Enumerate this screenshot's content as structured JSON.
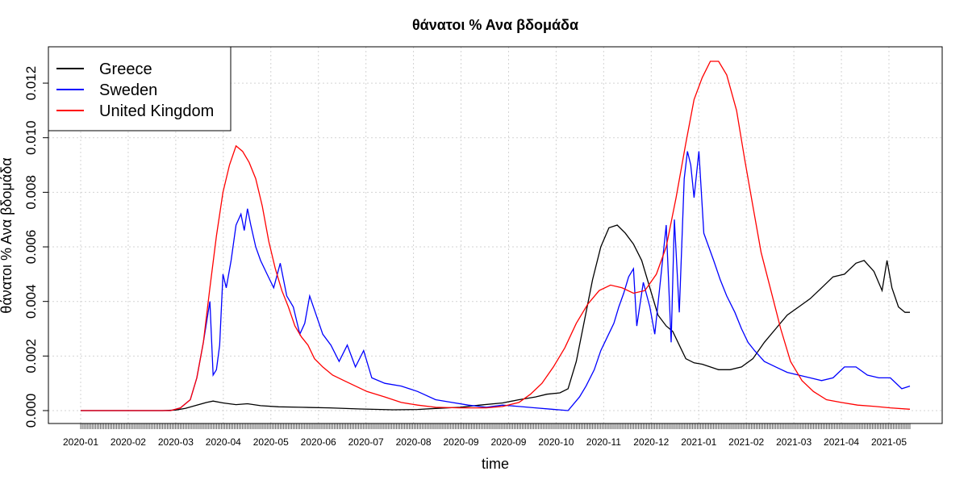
{
  "chart_data": {
    "type": "line",
    "title": "θάνατοι %  Ανα βδομάδα",
    "xlabel": "time",
    "ylabel": "θάνατοι %  Ανα βδομάδα",
    "x_tick_labels": [
      "2020-01",
      "2020-02",
      "2020-03",
      "2020-04",
      "2020-05",
      "2020-06",
      "2020-07",
      "2020-08",
      "2020-09",
      "2020-09",
      "2020-10",
      "2020-11",
      "2020-12",
      "2021-01",
      "2021-02",
      "2021-03",
      "2021-04",
      "2021-05"
    ],
    "y_ticks": [
      "0.000",
      "0.002",
      "0.004",
      "0.006",
      "0.008",
      "0.010",
      "0.012"
    ],
    "ylim": [
      0,
      0.0128
    ],
    "xlim": [
      "2020-01-01",
      "2021-05-22"
    ],
    "grid": true,
    "legend_position": "top-left",
    "series": [
      {
        "name": "Greece",
        "color": "#000000",
        "points": [
          [
            "2020-01-01",
            0.0
          ],
          [
            "2020-02-20",
            0.0
          ],
          [
            "2020-02-28",
            2e-05
          ],
          [
            "2020-03-05",
            8e-05
          ],
          [
            "2020-03-12",
            0.0002
          ],
          [
            "2020-03-18",
            0.0003
          ],
          [
            "2020-03-22",
            0.00035
          ],
          [
            "2020-03-28",
            0.00028
          ],
          [
            "2020-04-05",
            0.00022
          ],
          [
            "2020-04-12",
            0.00025
          ],
          [
            "2020-04-20",
            0.00018
          ],
          [
            "2020-05-01",
            0.00014
          ],
          [
            "2020-05-15",
            0.00012
          ],
          [
            "2020-06-01",
            0.0001
          ],
          [
            "2020-06-20",
            6e-05
          ],
          [
            "2020-07-10",
            3e-05
          ],
          [
            "2020-07-25",
            4e-05
          ],
          [
            "2020-08-05",
            8e-05
          ],
          [
            "2020-08-20",
            0.00012
          ],
          [
            "2020-09-01",
            0.0002
          ],
          [
            "2020-09-15",
            0.00028
          ],
          [
            "2020-09-25",
            0.0004
          ],
          [
            "2020-10-05",
            0.0005
          ],
          [
            "2020-10-12",
            0.0006
          ],
          [
            "2020-10-20",
            0.00065
          ],
          [
            "2020-10-25",
            0.0008
          ],
          [
            "2020-10-30",
            0.0018
          ],
          [
            "2020-11-04",
            0.0033
          ],
          [
            "2020-11-09",
            0.0048
          ],
          [
            "2020-11-14",
            0.006
          ],
          [
            "2020-11-19",
            0.0067
          ],
          [
            "2020-11-24",
            0.0068
          ],
          [
            "2020-11-29",
            0.0065
          ],
          [
            "2020-12-04",
            0.0061
          ],
          [
            "2020-12-09",
            0.0055
          ],
          [
            "2020-12-14",
            0.0045
          ],
          [
            "2020-12-19",
            0.0035
          ],
          [
            "2020-12-24",
            0.0031
          ],
          [
            "2020-12-28",
            0.0029
          ],
          [
            "2021-01-01",
            0.0024
          ],
          [
            "2021-01-05",
            0.0019
          ],
          [
            "2021-01-10",
            0.00175
          ],
          [
            "2021-01-15",
            0.0017
          ],
          [
            "2021-01-20",
            0.0016
          ],
          [
            "2021-01-25",
            0.0015
          ],
          [
            "2021-02-01",
            0.0015
          ],
          [
            "2021-02-08",
            0.0016
          ],
          [
            "2021-02-15",
            0.0019
          ],
          [
            "2021-02-22",
            0.0025
          ],
          [
            "2021-03-01",
            0.003
          ],
          [
            "2021-03-08",
            0.0035
          ],
          [
            "2021-03-15",
            0.0038
          ],
          [
            "2021-03-22",
            0.0041
          ],
          [
            "2021-03-29",
            0.0045
          ],
          [
            "2021-04-05",
            0.0049
          ],
          [
            "2021-04-12",
            0.005
          ],
          [
            "2021-04-19",
            0.0054
          ],
          [
            "2021-04-24",
            0.0055
          ],
          [
            "2021-04-30",
            0.0051
          ],
          [
            "2021-05-05",
            0.0044
          ],
          [
            "2021-05-08",
            0.0055
          ],
          [
            "2021-05-11",
            0.0045
          ],
          [
            "2021-05-15",
            0.0038
          ],
          [
            "2021-05-19",
            0.0036
          ],
          [
            "2021-05-22",
            0.0036
          ]
        ]
      },
      {
        "name": "Sweden",
        "color": "#0000ff",
        "points": [
          [
            "2020-01-01",
            0.0
          ],
          [
            "2020-02-25",
            0.0
          ],
          [
            "2020-03-02",
            0.0001
          ],
          [
            "2020-03-08",
            0.0004
          ],
          [
            "2020-03-12",
            0.0012
          ],
          [
            "2020-03-16",
            0.0025
          ],
          [
            "2020-03-20",
            0.004
          ],
          [
            "2020-03-22",
            0.0013
          ],
          [
            "2020-03-24",
            0.0015
          ],
          [
            "2020-03-26",
            0.0024
          ],
          [
            "2020-03-28",
            0.005
          ],
          [
            "2020-03-30",
            0.0045
          ],
          [
            "2020-04-02",
            0.0055
          ],
          [
            "2020-04-05",
            0.0068
          ],
          [
            "2020-04-08",
            0.0072
          ],
          [
            "2020-04-10",
            0.0066
          ],
          [
            "2020-04-12",
            0.0074
          ],
          [
            "2020-04-14",
            0.0068
          ],
          [
            "2020-04-17",
            0.006
          ],
          [
            "2020-04-20",
            0.0055
          ],
          [
            "2020-04-24",
            0.005
          ],
          [
            "2020-04-28",
            0.0045
          ],
          [
            "2020-05-02",
            0.0054
          ],
          [
            "2020-05-06",
            0.0042
          ],
          [
            "2020-05-10",
            0.0038
          ],
          [
            "2020-05-14",
            0.0028
          ],
          [
            "2020-05-17",
            0.0032
          ],
          [
            "2020-05-20",
            0.0042
          ],
          [
            "2020-05-24",
            0.0035
          ],
          [
            "2020-05-28",
            0.0028
          ],
          [
            "2020-06-02",
            0.0024
          ],
          [
            "2020-06-07",
            0.0018
          ],
          [
            "2020-06-12",
            0.0024
          ],
          [
            "2020-06-17",
            0.0016
          ],
          [
            "2020-06-22",
            0.0022
          ],
          [
            "2020-06-27",
            0.0012
          ],
          [
            "2020-07-05",
            0.001
          ],
          [
            "2020-07-15",
            0.0009
          ],
          [
            "2020-07-25",
            0.0007
          ],
          [
            "2020-08-05",
            0.0004
          ],
          [
            "2020-08-15",
            0.0003
          ],
          [
            "2020-08-25",
            0.0002
          ],
          [
            "2020-09-05",
            0.00012
          ],
          [
            "2020-09-15",
            0.0002
          ],
          [
            "2020-09-25",
            0.00015
          ],
          [
            "2020-10-05",
            0.0001
          ],
          [
            "2020-10-15",
            5e-05
          ],
          [
            "2020-10-25",
            0.0
          ],
          [
            "2020-11-01",
            0.0005
          ],
          [
            "2020-11-05",
            0.0009
          ],
          [
            "2020-11-10",
            0.0015
          ],
          [
            "2020-11-14",
            0.0022
          ],
          [
            "2020-11-18",
            0.0027
          ],
          [
            "2020-11-22",
            0.0032
          ],
          [
            "2020-11-25",
            0.0038
          ],
          [
            "2020-11-28",
            0.0043
          ],
          [
            "2020-12-01",
            0.0049
          ],
          [
            "2020-12-04",
            0.0052
          ],
          [
            "2020-12-06",
            0.0031
          ],
          [
            "2020-12-10",
            0.0047
          ],
          [
            "2020-12-14",
            0.0038
          ],
          [
            "2020-12-17",
            0.0028
          ],
          [
            "2020-12-20",
            0.0045
          ],
          [
            "2020-12-24",
            0.0068
          ],
          [
            "2020-12-27",
            0.0025
          ],
          [
            "2020-12-29",
            0.007
          ],
          [
            "2021-01-01",
            0.0036
          ],
          [
            "2021-01-04",
            0.0085
          ],
          [
            "2021-01-06",
            0.0095
          ],
          [
            "2021-01-08",
            0.009
          ],
          [
            "2021-01-10",
            0.0078
          ],
          [
            "2021-01-13",
            0.0095
          ],
          [
            "2021-01-16",
            0.0065
          ],
          [
            "2021-01-19",
            0.006
          ],
          [
            "2021-01-22",
            0.0055
          ],
          [
            "2021-01-26",
            0.0048
          ],
          [
            "2021-01-30",
            0.0042
          ],
          [
            "2021-02-04",
            0.0036
          ],
          [
            "2021-02-08",
            0.003
          ],
          [
            "2021-02-12",
            0.0025
          ],
          [
            "2021-02-16",
            0.0022
          ],
          [
            "2021-02-22",
            0.0018
          ],
          [
            "2021-03-01",
            0.0016
          ],
          [
            "2021-03-08",
            0.0014
          ],
          [
            "2021-03-15",
            0.0013
          ],
          [
            "2021-03-22",
            0.0012
          ],
          [
            "2021-03-29",
            0.0011
          ],
          [
            "2021-04-05",
            0.0012
          ],
          [
            "2021-04-12",
            0.0016
          ],
          [
            "2021-04-19",
            0.0016
          ],
          [
            "2021-04-26",
            0.0013
          ],
          [
            "2021-05-03",
            0.0012
          ],
          [
            "2021-05-10",
            0.0012
          ],
          [
            "2021-05-17",
            0.0008
          ],
          [
            "2021-05-22",
            0.0009
          ]
        ]
      },
      {
        "name": "United Kingdom",
        "color": "#ff0000",
        "points": [
          [
            "2020-01-01",
            0.0
          ],
          [
            "2020-02-25",
            0.0
          ],
          [
            "2020-03-02",
            0.0001
          ],
          [
            "2020-03-08",
            0.0004
          ],
          [
            "2020-03-12",
            0.0012
          ],
          [
            "2020-03-16",
            0.0025
          ],
          [
            "2020-03-20",
            0.0045
          ],
          [
            "2020-03-24",
            0.0064
          ],
          [
            "2020-03-28",
            0.008
          ],
          [
            "2020-04-01",
            0.009
          ],
          [
            "2020-04-05",
            0.0097
          ],
          [
            "2020-04-09",
            0.0095
          ],
          [
            "2020-04-13",
            0.0091
          ],
          [
            "2020-04-17",
            0.0085
          ],
          [
            "2020-04-21",
            0.0075
          ],
          [
            "2020-04-25",
            0.0062
          ],
          [
            "2020-04-29",
            0.0052
          ],
          [
            "2020-05-03",
            0.0044
          ],
          [
            "2020-05-07",
            0.0038
          ],
          [
            "2020-05-11",
            0.0031
          ],
          [
            "2020-05-15",
            0.0027
          ],
          [
            "2020-05-19",
            0.0024
          ],
          [
            "2020-05-23",
            0.0019
          ],
          [
            "2020-05-28",
            0.0016
          ],
          [
            "2020-06-03",
            0.0013
          ],
          [
            "2020-06-10",
            0.0011
          ],
          [
            "2020-06-17",
            0.0009
          ],
          [
            "2020-06-24",
            0.0007
          ],
          [
            "2020-07-05",
            0.0005
          ],
          [
            "2020-07-15",
            0.0003
          ],
          [
            "2020-07-25",
            0.0002
          ],
          [
            "2020-08-05",
            0.00012
          ],
          [
            "2020-08-20",
            0.0001
          ],
          [
            "2020-09-05",
            0.0001
          ],
          [
            "2020-09-15",
            0.00015
          ],
          [
            "2020-09-25",
            0.0003
          ],
          [
            "2020-10-02",
            0.0006
          ],
          [
            "2020-10-09",
            0.001
          ],
          [
            "2020-10-16",
            0.0016
          ],
          [
            "2020-10-23",
            0.0023
          ],
          [
            "2020-10-30",
            0.0032
          ],
          [
            "2020-11-06",
            0.0039
          ],
          [
            "2020-11-13",
            0.0044
          ],
          [
            "2020-11-20",
            0.0046
          ],
          [
            "2020-11-27",
            0.0045
          ],
          [
            "2020-12-04",
            0.0043
          ],
          [
            "2020-12-11",
            0.0044
          ],
          [
            "2020-12-18",
            0.005
          ],
          [
            "2020-12-24",
            0.006
          ],
          [
            "2020-12-30",
            0.0078
          ],
          [
            "2021-01-05",
            0.0098
          ],
          [
            "2021-01-10",
            0.0114
          ],
          [
            "2021-01-15",
            0.0122
          ],
          [
            "2021-01-20",
            0.0128
          ],
          [
            "2021-01-25",
            0.0128
          ],
          [
            "2021-01-30",
            0.0123
          ],
          [
            "2021-02-05",
            0.011
          ],
          [
            "2021-02-10",
            0.0092
          ],
          [
            "2021-02-15",
            0.0075
          ],
          [
            "2021-02-20",
            0.0058
          ],
          [
            "2021-02-26",
            0.0044
          ],
          [
            "2021-03-04",
            0.003
          ],
          [
            "2021-03-10",
            0.0018
          ],
          [
            "2021-03-17",
            0.0011
          ],
          [
            "2021-03-24",
            0.0007
          ],
          [
            "2021-04-01",
            0.0004
          ],
          [
            "2021-04-10",
            0.0003
          ],
          [
            "2021-04-20",
            0.0002
          ],
          [
            "2021-05-01",
            0.00015
          ],
          [
            "2021-05-10",
            0.0001
          ],
          [
            "2021-05-22",
            5e-05
          ]
        ]
      }
    ]
  }
}
